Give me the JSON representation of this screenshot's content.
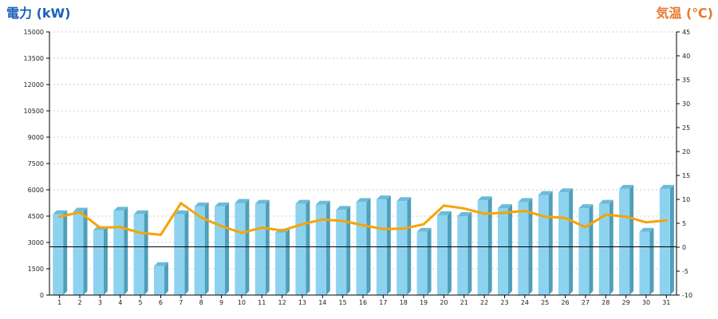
{
  "chart_data": {
    "type": "bar",
    "left_axis_label": "電力 (kW)",
    "right_axis_label": "気温 (℃)",
    "left_axis": {
      "min": 0,
      "max": 15000,
      "ticks": [
        0,
        1500,
        3000,
        4500,
        6000,
        7500,
        9000,
        10500,
        12000,
        13500,
        15000
      ]
    },
    "right_axis": {
      "min": -10,
      "max": 45,
      "ticks": [
        -10,
        -5,
        0,
        5,
        10,
        15,
        20,
        25,
        30,
        35,
        40,
        45
      ]
    },
    "categories": [
      "1",
      "2",
      "3",
      "4",
      "5",
      "6",
      "7",
      "8",
      "9",
      "10",
      "11",
      "12",
      "13",
      "14",
      "15",
      "16",
      "17",
      "18",
      "19",
      "20",
      "21",
      "22",
      "23",
      "24",
      "25",
      "26",
      "27",
      "28",
      "29",
      "30",
      "31"
    ],
    "series": [
      {
        "kind": "bar",
        "axis": "left",
        "values": [
          4600,
          4750,
          3700,
          4800,
          4600,
          1650,
          4600,
          5050,
          5050,
          5250,
          5200,
          3550,
          5200,
          5150,
          4850,
          5300,
          5450,
          5350,
          3600,
          4550,
          4500,
          5400,
          4950,
          5300,
          5700,
          5850,
          4950,
          5200,
          6050,
          3600,
          6050
        ]
      },
      {
        "kind": "line",
        "axis": "right",
        "values": [
          6.4,
          7.3,
          4.1,
          4.2,
          3.0,
          2.6,
          9.2,
          6.2,
          4.4,
          3.0,
          4.1,
          3.5,
          4.8,
          5.8,
          5.5,
          4.6,
          3.8,
          3.9,
          4.8,
          8.7,
          8.1,
          7.0,
          7.2,
          7.6,
          6.4,
          6.1,
          4.2,
          6.8,
          6.4,
          5.2,
          5.6
        ]
      }
    ],
    "reference_line": {
      "axis": "left",
      "value": 2750
    },
    "grid": true,
    "colors": {
      "bar_front": "#8dd3ef",
      "bar_side": "#4f9fba",
      "bar_top": "#6bbbd8",
      "line": "#f7a300",
      "left_title": "#1c5fb8",
      "right_title": "#e8792e",
      "grid": "#bbbbbb",
      "axis": "#000000"
    }
  }
}
